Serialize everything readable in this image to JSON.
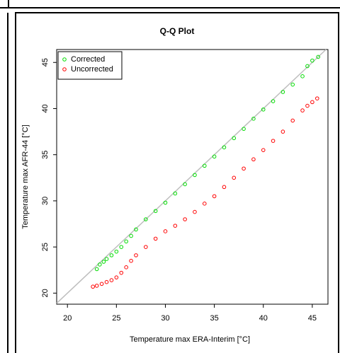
{
  "chart_data": {
    "type": "scatter",
    "title": "Q-Q Plot",
    "x_label": "Temperature max ERA-Interim [°C]",
    "y_label": "Temperature max AFR-44 [°C]",
    "xlim": [
      18.9,
      46.6
    ],
    "ylim": [
      18.8,
      46.4
    ],
    "xticks": [
      20,
      25,
      30,
      35,
      40,
      45
    ],
    "yticks": [
      20,
      25,
      30,
      35,
      40,
      45
    ],
    "identity_line": true,
    "identity_color": "#bebebe",
    "legend": "top-left",
    "series": [
      {
        "name": "Corrected",
        "color": "#00dd00",
        "x": [
          23,
          23.3,
          23.7,
          24,
          24.5,
          25,
          25.5,
          26,
          26.5,
          27,
          28,
          29,
          30,
          31,
          32,
          33,
          34,
          35,
          36,
          37,
          38,
          39,
          40,
          41,
          42,
          43,
          44,
          44.5,
          45,
          45.6
        ],
        "values": [
          22.6,
          23.1,
          23.4,
          23.7,
          24.1,
          24.5,
          25,
          25.6,
          26.2,
          26.9,
          28,
          28.9,
          29.8,
          30.8,
          31.8,
          32.8,
          33.8,
          34.8,
          35.8,
          36.8,
          37.8,
          38.9,
          39.9,
          40.8,
          41.8,
          42.6,
          43.5,
          44.6,
          45.2,
          45.6
        ]
      },
      {
        "name": "Uncorrected",
        "color": "#ff0000",
        "x": [
          22.6,
          23,
          23.5,
          24,
          24.5,
          25,
          25.5,
          26,
          26.5,
          27,
          28,
          29,
          30,
          31,
          32,
          33,
          34,
          35,
          36,
          37,
          38,
          39,
          40,
          41,
          42,
          43,
          44,
          44.5,
          45,
          45.5
        ],
        "values": [
          20.7,
          20.8,
          21,
          21.2,
          21.4,
          21.7,
          22.2,
          22.8,
          23.5,
          24.1,
          25,
          25.9,
          26.7,
          27.3,
          28,
          28.8,
          29.7,
          30.5,
          31.5,
          32.5,
          33.5,
          34.5,
          35.5,
          36.5,
          37.5,
          38.7,
          39.8,
          40.3,
          40.7,
          41.1
        ]
      }
    ]
  }
}
